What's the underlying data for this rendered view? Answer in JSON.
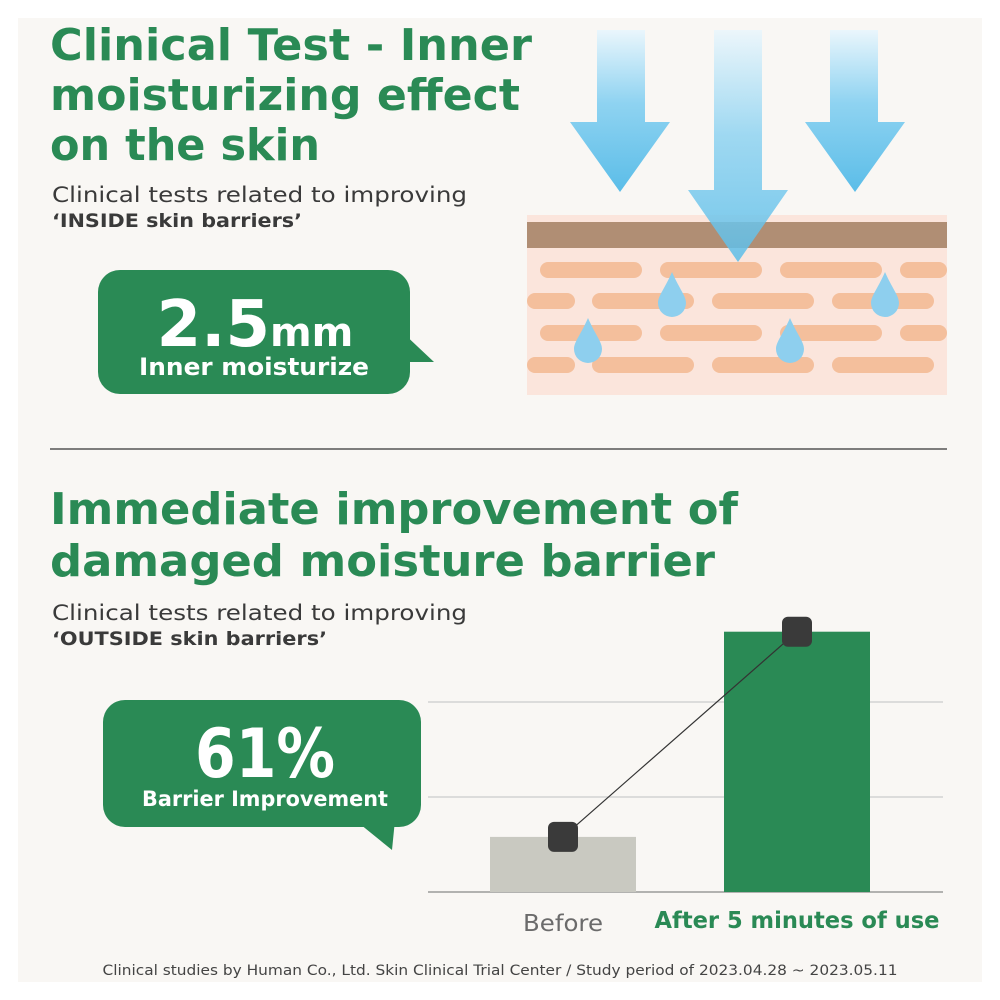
{
  "section1": {
    "title": [
      "Clinical Test - Inner",
      "moisturizing effect",
      "on the skin"
    ],
    "subtitle": [
      "Clinical tests related to improving",
      "‘INSIDE skin barriers’"
    ],
    "stat_value": "2.5",
    "stat_unit": "mm",
    "stat_label": "Inner moisturize"
  },
  "section2": {
    "title": [
      "Immediate improvement of",
      "damaged moisture barrier"
    ],
    "subtitle": [
      "Clinical tests related to improving",
      "‘OUTSIDE skin barriers’"
    ],
    "stat_value": "61%",
    "stat_label": "Barrier Improvement"
  },
  "chart_data": {
    "type": "bar",
    "categories": [
      "Before",
      "After 5 minutes of use"
    ],
    "values": [
      0.58,
      2.74
    ],
    "colors": [
      "#c9c9c1",
      "#2a8a55"
    ],
    "label_colors": [
      "#6b6b6b",
      "#2a8a55"
    ],
    "ylim": [
      0,
      3
    ],
    "yticks": [
      0,
      1,
      2
    ],
    "grid": true,
    "line": true
  },
  "footer": "Clinical studies by Human Co., Ltd. Skin Clinical Trial Center / Study period of 2023.04.28 ~ 2023.05.11"
}
